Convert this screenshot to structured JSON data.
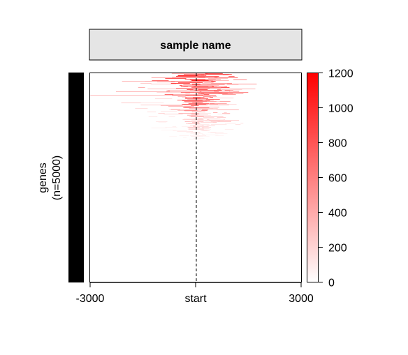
{
  "chart_data": {
    "type": "heatmap",
    "title": "sample name",
    "ylabel_line1": "genes",
    "ylabel_line2": "(n=5000)",
    "n_rows": 5000,
    "x_ticks": [
      {
        "value": -3000,
        "label": "-3000"
      },
      {
        "value": 0,
        "label": "start"
      },
      {
        "value": 3000,
        "label": "3000"
      }
    ],
    "xlim": [
      -3000,
      3000
    ],
    "reference_line": {
      "x": 0,
      "style": "dashed"
    },
    "grid": false,
    "color_scale": {
      "min": 0,
      "max": 1200,
      "low_color": "#ffffff",
      "high_color": "#ff0000",
      "ticks": [
        "0",
        "200",
        "400",
        "600",
        "800",
        "1000",
        "1200"
      ],
      "placement": "right"
    },
    "row_annotation": {
      "color": "#000000",
      "label": "genes (n=5000)"
    },
    "signal_profile": {
      "description_values_by_row_fraction": [
        {
          "row_frac": 0.0,
          "peak_value": 1200
        },
        {
          "row_frac": 0.05,
          "peak_value": 1100
        },
        {
          "row_frac": 0.1,
          "peak_value": 900
        },
        {
          "row_frac": 0.15,
          "peak_value": 700
        },
        {
          "row_frac": 0.2,
          "peak_value": 450
        },
        {
          "row_frac": 0.25,
          "peak_value": 250
        },
        {
          "row_frac": 0.3,
          "peak_value": 80
        },
        {
          "row_frac": 0.35,
          "peak_value": 0
        }
      ]
    }
  }
}
